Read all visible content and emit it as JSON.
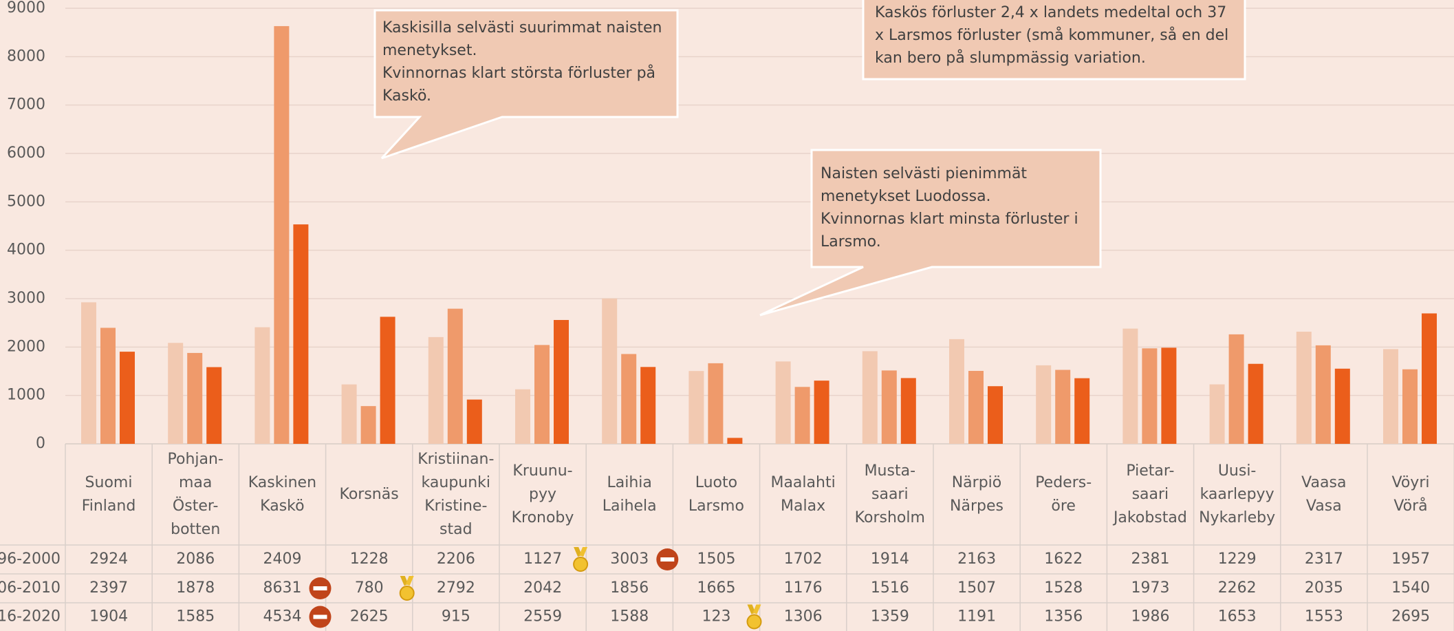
{
  "chart_data": {
    "type": "bar",
    "categories": [
      "Suomi\nFinland",
      "Pohjan-\nmaa\nÖster-\nbotten",
      "Kaskinen\nKaskö",
      "Korsnäs",
      "Kristiinan-\nkaupunki\nKristine-\nstad",
      "Kruunu-\npyy\nKronoby",
      "Laihia\nLaihela",
      "Luoto\nLarsmo",
      "Maalahti\nMalax",
      "Musta-\nsaari\nKorsholm",
      "Närpiö\nNärpes",
      "Peders-\nöre",
      "Pietar-\nsaari\nJakobstad",
      "Uusi-\nkaarlepyy\nNykarleby",
      "Vaasa\nVasa",
      "Vöyri\nVörå"
    ],
    "series": [
      {
        "name": "96-2000",
        "color": "#f2c9b1",
        "values": [
          2924,
          2086,
          2409,
          1228,
          2206,
          1127,
          3003,
          1505,
          1702,
          1914,
          2163,
          1622,
          2381,
          1229,
          2317,
          1957
        ]
      },
      {
        "name": "06-2010",
        "color": "#ef9a6b",
        "values": [
          2397,
          1878,
          8631,
          780,
          2792,
          2042,
          1856,
          1665,
          1176,
          1516,
          1507,
          1528,
          1973,
          2262,
          2035,
          1540
        ]
      },
      {
        "name": "16-2020",
        "color": "#eb5e1b",
        "values": [
          1904,
          1585,
          4534,
          2625,
          915,
          2559,
          1588,
          123,
          1306,
          1359,
          1191,
          1356,
          1986,
          1653,
          1553,
          2695
        ]
      }
    ],
    "ylim": [
      0,
      9000
    ],
    "yticks": [
      0,
      1000,
      2000,
      3000,
      4000,
      5000,
      6000,
      7000,
      8000,
      9000
    ],
    "grid": true,
    "annotations": [
      "Kaskisilla selvästi suurimmat naisten\nmenetykset.\nKvinnornas klart största förluster på\nKaskö.",
      "Kaskös förluster 2,4 x landets medeltal och 37\nx Larsmos förluster (små kommuner, så en del\nkan bero på slumpmässig variation.",
      "Naisten selvästi pienimmät\nmenetykset Luodossa.\nKvinnornas klart minsta förluster i\nLarsmo."
    ]
  }
}
